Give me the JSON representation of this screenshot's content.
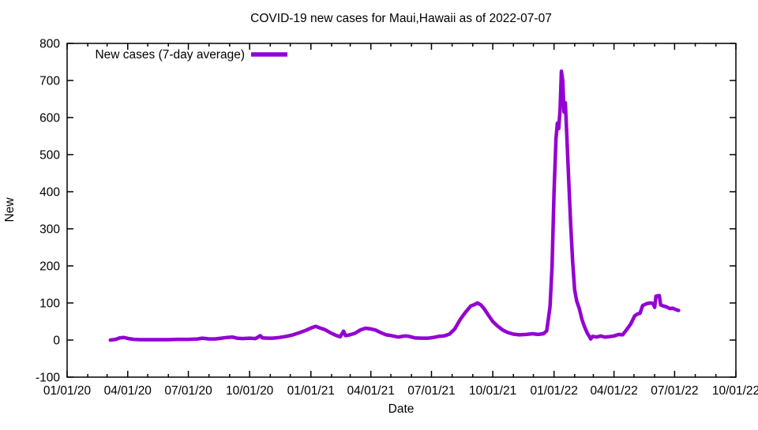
{
  "chart_data": {
    "type": "line",
    "title": "COVID-19 new cases for Maui,Hawaii as of 2022-07-07",
    "xlabel": "Date",
    "ylabel": "New",
    "legend": {
      "label": "New cases (7-day average)",
      "position": "top-left-inside"
    },
    "line_color": "#9400D3",
    "background": "#ffffff",
    "grid": false,
    "ylim": [
      -100,
      800
    ],
    "y_tick_step": 100,
    "x_range": [
      "2020-01-01",
      "2022-10-01"
    ],
    "x_minor_tick_interval": "month",
    "x_ticks": [
      {
        "label": "01/01/20",
        "date": "2020-01-01"
      },
      {
        "label": "04/01/20",
        "date": "2020-04-01"
      },
      {
        "label": "07/01/20",
        "date": "2020-07-01"
      },
      {
        "label": "10/01/20",
        "date": "2020-10-01"
      },
      {
        "label": "01/01/21",
        "date": "2021-01-01"
      },
      {
        "label": "04/01/21",
        "date": "2021-04-01"
      },
      {
        "label": "07/01/21",
        "date": "2021-07-01"
      },
      {
        "label": "10/01/21",
        "date": "2021-10-01"
      },
      {
        "label": "01/01/22",
        "date": "2022-01-01"
      },
      {
        "label": "04/01/22",
        "date": "2022-04-01"
      },
      {
        "label": "07/01/22",
        "date": "2022-07-01"
      },
      {
        "label": "10/01/22",
        "date": "2022-10-01"
      }
    ],
    "series": [
      {
        "name": "New cases (7-day average)",
        "points": [
          [
            "2020-03-06",
            0
          ],
          [
            "2020-03-14",
            2
          ],
          [
            "2020-03-20",
            6
          ],
          [
            "2020-03-26",
            7
          ],
          [
            "2020-04-02",
            4
          ],
          [
            "2020-04-10",
            2
          ],
          [
            "2020-04-20",
            1
          ],
          [
            "2020-05-01",
            1
          ],
          [
            "2020-05-15",
            1
          ],
          [
            "2020-06-01",
            1
          ],
          [
            "2020-06-15",
            2
          ],
          [
            "2020-07-01",
            2
          ],
          [
            "2020-07-15",
            3
          ],
          [
            "2020-07-22",
            5
          ],
          [
            "2020-08-01",
            3
          ],
          [
            "2020-08-10",
            3
          ],
          [
            "2020-08-20",
            5
          ],
          [
            "2020-08-28",
            7
          ],
          [
            "2020-09-05",
            8
          ],
          [
            "2020-09-12",
            5
          ],
          [
            "2020-09-20",
            4
          ],
          [
            "2020-10-01",
            5
          ],
          [
            "2020-10-10",
            4
          ],
          [
            "2020-10-17",
            12
          ],
          [
            "2020-10-20",
            6
          ],
          [
            "2020-10-28",
            5
          ],
          [
            "2020-11-05",
            5
          ],
          [
            "2020-11-15",
            7
          ],
          [
            "2020-11-25",
            10
          ],
          [
            "2020-12-05",
            14
          ],
          [
            "2020-12-15",
            20
          ],
          [
            "2020-12-24",
            26
          ],
          [
            "2021-01-02",
            33
          ],
          [
            "2021-01-08",
            37
          ],
          [
            "2021-01-14",
            33
          ],
          [
            "2021-01-22",
            28
          ],
          [
            "2021-01-30",
            20
          ],
          [
            "2021-02-07",
            13
          ],
          [
            "2021-02-14",
            9
          ],
          [
            "2021-02-19",
            24
          ],
          [
            "2021-02-22",
            12
          ],
          [
            "2021-02-28",
            14
          ],
          [
            "2021-03-08",
            18
          ],
          [
            "2021-03-16",
            27
          ],
          [
            "2021-03-24",
            32
          ],
          [
            "2021-04-01",
            30
          ],
          [
            "2021-04-08",
            27
          ],
          [
            "2021-04-16",
            20
          ],
          [
            "2021-04-24",
            14
          ],
          [
            "2021-05-02",
            12
          ],
          [
            "2021-05-12",
            8
          ],
          [
            "2021-05-22",
            11
          ],
          [
            "2021-05-28",
            10
          ],
          [
            "2021-06-06",
            6
          ],
          [
            "2021-06-16",
            5
          ],
          [
            "2021-06-26",
            5
          ],
          [
            "2021-07-04",
            7
          ],
          [
            "2021-07-12",
            10
          ],
          [
            "2021-07-20",
            11
          ],
          [
            "2021-07-28",
            16
          ],
          [
            "2021-08-05",
            30
          ],
          [
            "2021-08-13",
            55
          ],
          [
            "2021-08-21",
            75
          ],
          [
            "2021-08-29",
            92
          ],
          [
            "2021-09-04",
            96
          ],
          [
            "2021-09-08",
            100
          ],
          [
            "2021-09-13",
            95
          ],
          [
            "2021-09-18",
            85
          ],
          [
            "2021-09-24",
            68
          ],
          [
            "2021-10-01",
            50
          ],
          [
            "2021-10-08",
            38
          ],
          [
            "2021-10-16",
            27
          ],
          [
            "2021-10-24",
            20
          ],
          [
            "2021-11-01",
            16
          ],
          [
            "2021-11-10",
            14
          ],
          [
            "2021-11-20",
            15
          ],
          [
            "2021-11-30",
            17
          ],
          [
            "2021-12-08",
            15
          ],
          [
            "2021-12-16",
            17
          ],
          [
            "2021-12-21",
            25
          ],
          [
            "2021-12-26",
            90
          ],
          [
            "2021-12-29",
            200
          ],
          [
            "2022-01-01",
            400
          ],
          [
            "2022-01-04",
            545
          ],
          [
            "2022-01-06",
            585
          ],
          [
            "2022-01-08",
            570
          ],
          [
            "2022-01-10",
            620
          ],
          [
            "2022-01-12",
            725
          ],
          [
            "2022-01-14",
            700
          ],
          [
            "2022-01-16",
            615
          ],
          [
            "2022-01-18",
            640
          ],
          [
            "2022-01-20",
            560
          ],
          [
            "2022-01-23",
            430
          ],
          [
            "2022-01-26",
            310
          ],
          [
            "2022-01-29",
            210
          ],
          [
            "2022-02-01",
            135
          ],
          [
            "2022-02-04",
            105
          ],
          [
            "2022-02-08",
            85
          ],
          [
            "2022-02-12",
            55
          ],
          [
            "2022-02-16",
            35
          ],
          [
            "2022-02-20",
            18
          ],
          [
            "2022-02-23",
            10
          ],
          [
            "2022-02-25",
            3
          ],
          [
            "2022-02-28",
            10
          ],
          [
            "2022-03-06",
            8
          ],
          [
            "2022-03-12",
            11
          ],
          [
            "2022-03-18",
            8
          ],
          [
            "2022-03-24",
            9
          ],
          [
            "2022-04-01",
            11
          ],
          [
            "2022-04-08",
            15
          ],
          [
            "2022-04-14",
            14
          ],
          [
            "2022-04-20",
            28
          ],
          [
            "2022-04-26",
            43
          ],
          [
            "2022-05-02",
            65
          ],
          [
            "2022-05-06",
            70
          ],
          [
            "2022-05-10",
            72
          ],
          [
            "2022-05-14",
            93
          ],
          [
            "2022-05-20",
            98
          ],
          [
            "2022-05-26",
            100
          ],
          [
            "2022-05-30",
            98
          ],
          [
            "2022-06-01",
            88
          ],
          [
            "2022-06-03",
            118
          ],
          [
            "2022-06-08",
            120
          ],
          [
            "2022-06-10",
            95
          ],
          [
            "2022-06-14",
            92
          ],
          [
            "2022-06-18",
            90
          ],
          [
            "2022-06-24",
            85
          ],
          [
            "2022-06-28",
            86
          ],
          [
            "2022-07-03",
            82
          ],
          [
            "2022-07-07",
            80
          ]
        ]
      }
    ]
  }
}
